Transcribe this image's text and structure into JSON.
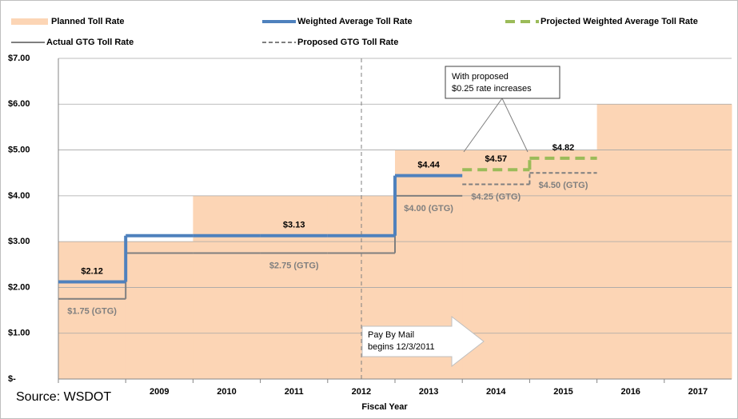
{
  "chart_data": {
    "type": "step-line",
    "x_label": "Fiscal Year",
    "source": "Source:  WSDOT",
    "categories": [
      null,
      "2009",
      "2010",
      "2011",
      "2012",
      "2013",
      "2014",
      "2015",
      "2016",
      "2017"
    ],
    "ylim": [
      0,
      7
    ],
    "yticks": [
      {
        "value": 0,
        "label": "$-"
      },
      {
        "value": 1,
        "label": "$1.00"
      },
      {
        "value": 2,
        "label": "$2.00"
      },
      {
        "value": 3,
        "label": "$3.00"
      },
      {
        "value": 4,
        "label": "$4.00"
      },
      {
        "value": 5,
        "label": "$5.00"
      },
      {
        "value": 6,
        "label": "$6.00"
      },
      {
        "value": 7,
        "label": "$7.00"
      }
    ],
    "grid": true,
    "series": [
      {
        "name": "Planned Toll Rate",
        "color": "#fcd5b5",
        "style": "area",
        "values": [
          3,
          3,
          4,
          4,
          4,
          5,
          5,
          5,
          6,
          6
        ]
      },
      {
        "name": "Weighted Average Toll Rate",
        "color": "#4f81bd",
        "style": "solid",
        "values": [
          2.12,
          3.13,
          3.13,
          3.13,
          3.13,
          4.44,
          null,
          null,
          null,
          null
        ],
        "value_labels": [
          "$2.12",
          null,
          null,
          "$3.13",
          null,
          "$4.44",
          null,
          null,
          null,
          null
        ]
      },
      {
        "name": "Projected Weighted Average Toll Rate",
        "color": "#9bbb59",
        "style": "dashed",
        "values": [
          null,
          null,
          null,
          null,
          null,
          null,
          4.57,
          4.82,
          null,
          null
        ],
        "value_labels": [
          null,
          null,
          null,
          null,
          null,
          null,
          "$4.57",
          "$4.82",
          null,
          null
        ]
      },
      {
        "name": "Actual GTG Toll Rate",
        "color": "#7f7f7f",
        "style": "solid",
        "values": [
          1.75,
          2.75,
          2.75,
          2.75,
          2.75,
          4.0,
          null,
          null,
          null,
          null
        ],
        "value_labels": [
          "$1.75 (GTG)",
          null,
          null,
          "$2.75 (GTG)",
          null,
          "$4.00 (GTG)",
          null,
          null,
          null,
          null
        ]
      },
      {
        "name": "Proposed GTG Toll Rate",
        "color": "#7f7f7f",
        "style": "dashed",
        "values": [
          null,
          null,
          null,
          null,
          null,
          null,
          4.25,
          4.5,
          null,
          null
        ],
        "value_labels": [
          null,
          null,
          null,
          null,
          null,
          null,
          "$4.25 (GTG)",
          "$4.50 (GTG)",
          null,
          null
        ]
      }
    ],
    "annotations": [
      {
        "lines": [
          "With proposed",
          "$0.25 rate increases"
        ]
      },
      {
        "lines": [
          "Pay By Mail",
          "begins 12/3/2011"
        ]
      }
    ]
  }
}
